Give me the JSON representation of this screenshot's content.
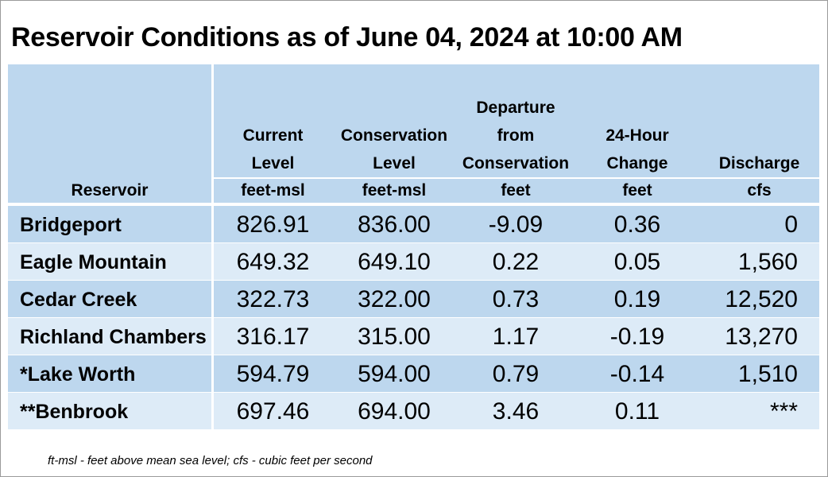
{
  "title": "Reservoir Conditions as of June 04, 2024 at 10:00 AM",
  "columns": [
    {
      "key": "reservoir",
      "lines": [],
      "unit": "Reservoir"
    },
    {
      "key": "current",
      "lines": [
        "Current",
        "Level"
      ],
      "unit": "feet-msl"
    },
    {
      "key": "conservation",
      "lines": [
        "Conservation",
        "Level"
      ],
      "unit": "feet-msl"
    },
    {
      "key": "departure",
      "lines": [
        "Departure",
        "from",
        "Conservation"
      ],
      "unit": "feet"
    },
    {
      "key": "change",
      "lines": [
        "24-Hour",
        "Change"
      ],
      "unit": "feet"
    },
    {
      "key": "discharge",
      "lines": [
        "Discharge"
      ],
      "unit": "cfs"
    }
  ],
  "rows": [
    {
      "name": "Bridgeport",
      "current": "826.91",
      "conservation": "836.00",
      "departure": "-9.09",
      "change": "0.36",
      "discharge": "0"
    },
    {
      "name": "Eagle Mountain",
      "current": "649.32",
      "conservation": "649.10",
      "departure": "0.22",
      "change": "0.05",
      "discharge": "1,560"
    },
    {
      "name": "Cedar Creek",
      "current": "322.73",
      "conservation": "322.00",
      "departure": "0.73",
      "change": "0.19",
      "discharge": "12,520"
    },
    {
      "name": "Richland Chambers",
      "current": "316.17",
      "conservation": "315.00",
      "departure": "1.17",
      "change": "-0.19",
      "discharge": "13,270"
    },
    {
      "name": "*Lake Worth",
      "current": "594.79",
      "conservation": "594.00",
      "departure": "0.79",
      "change": "-0.14",
      "discharge": "1,510"
    },
    {
      "name": "**Benbrook",
      "current": "697.46",
      "conservation": "694.00",
      "departure": "3.46",
      "change": "0.11",
      "discharge": "***"
    }
  ],
  "footnote": "ft-msl - feet above mean sea level; cfs - cubic feet per second",
  "colors": {
    "header_bg": "#bdd7ee",
    "row_dark": "#bdd7ee",
    "row_light": "#ddebf7"
  }
}
